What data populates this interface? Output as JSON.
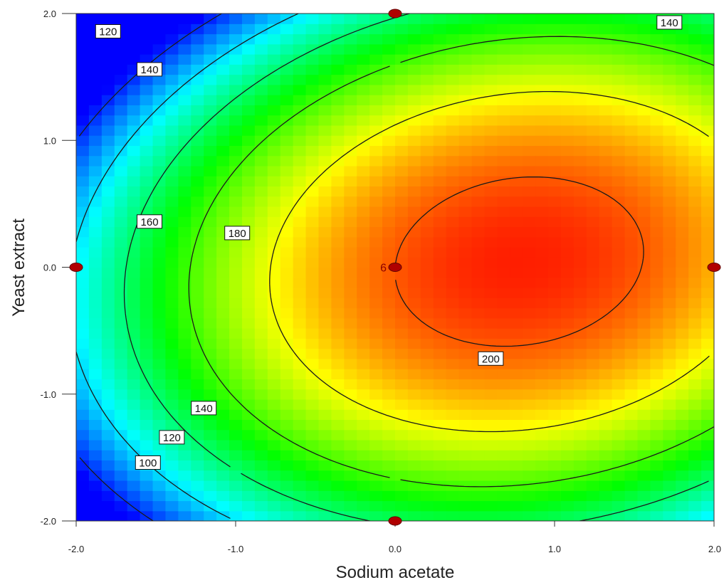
{
  "chart_data": {
    "type": "heatmap",
    "subtype": "contour",
    "title": "",
    "xlabel": "Sodium acetate",
    "ylabel": "Yeast extract",
    "xlim": [
      -2.0,
      2.0
    ],
    "ylim": [
      -2.0,
      2.0
    ],
    "x_ticks": [
      "-2.0",
      "-1.0",
      "0.0",
      "1.0",
      "2.0"
    ],
    "y_ticks": [
      "-2.0",
      "-1.0",
      "0.0",
      "1.0",
      "2.0"
    ],
    "grid": false,
    "colormap": [
      "#0000ff",
      "#00ffff",
      "#00ff00",
      "#ffff00",
      "#ff0000"
    ],
    "z_range": [
      95,
      210
    ],
    "model": {
      "form": "quadratic",
      "intercept": 200,
      "x": 17,
      "y": -1,
      "x2": -11,
      "y2": -15,
      "xy": 3
    },
    "contour_levels": [
      100,
      120,
      140,
      160,
      180,
      200
    ],
    "contour_labels": [
      {
        "text": "120",
        "x": -1.8,
        "y": 1.86
      },
      {
        "text": "140",
        "x": -1.54,
        "y": 1.56
      },
      {
        "text": "140",
        "x": 1.72,
        "y": 1.93
      },
      {
        "text": "160",
        "x": -1.54,
        "y": 0.36
      },
      {
        "text": "180",
        "x": -0.99,
        "y": 0.27
      },
      {
        "text": "200",
        "x": 0.6,
        "y": -0.72
      },
      {
        "text": "140",
        "x": -1.2,
        "y": -1.11
      },
      {
        "text": "120",
        "x": -1.4,
        "y": -1.34
      },
      {
        "text": "100",
        "x": -1.55,
        "y": -1.54
      }
    ],
    "design_points": [
      {
        "x": 0.0,
        "y": 2.0
      },
      {
        "x": -2.0,
        "y": 0.0
      },
      {
        "x": 0.0,
        "y": 0.0
      },
      {
        "x": 2.0,
        "y": 0.0
      },
      {
        "x": 0.0,
        "y": -2.0
      }
    ],
    "center_point_label": "6",
    "point_color": "#b00000"
  }
}
